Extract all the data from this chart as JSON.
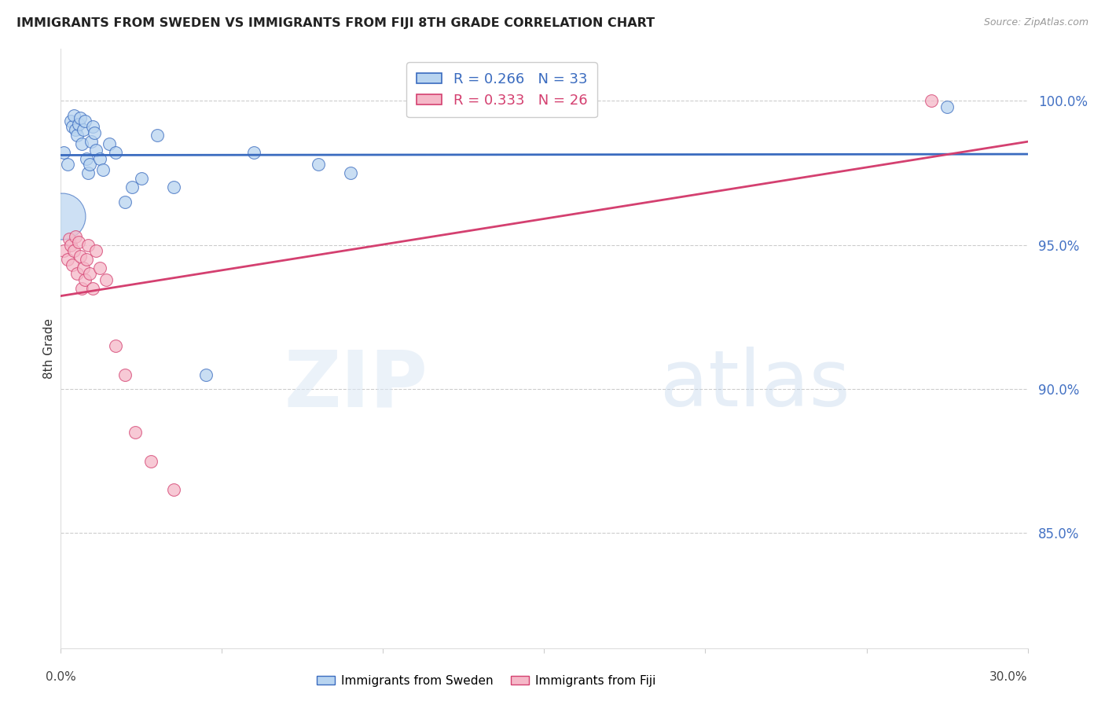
{
  "title": "IMMIGRANTS FROM SWEDEN VS IMMIGRANTS FROM FIJI 8TH GRADE CORRELATION CHART",
  "source": "Source: ZipAtlas.com",
  "ylabel": "8th Grade",
  "x_min": 0.0,
  "x_max": 30.0,
  "y_min": 81.0,
  "y_max": 101.8,
  "y_ticks": [
    85.0,
    90.0,
    95.0,
    100.0
  ],
  "sweden_R": 0.266,
  "sweden_N": 33,
  "fiji_R": 0.333,
  "fiji_N": 26,
  "sweden_color": "#b8d4f0",
  "fiji_color": "#f5b8c8",
  "sweden_line_color": "#3a6bbf",
  "fiji_line_color": "#d44070",
  "sweden_points_x": [
    0.1,
    0.2,
    0.3,
    0.35,
    0.4,
    0.45,
    0.5,
    0.55,
    0.6,
    0.65,
    0.7,
    0.75,
    0.8,
    0.85,
    0.9,
    0.95,
    1.0,
    1.05,
    1.1,
    1.2,
    1.3,
    1.5,
    1.7,
    2.0,
    2.2,
    2.5,
    3.0,
    3.5,
    4.5,
    6.0,
    8.0,
    9.0,
    27.5
  ],
  "sweden_points_y": [
    98.2,
    97.8,
    99.3,
    99.1,
    99.5,
    99.0,
    98.8,
    99.2,
    99.4,
    98.5,
    99.0,
    99.3,
    98.0,
    97.5,
    97.8,
    98.6,
    99.1,
    98.9,
    98.3,
    98.0,
    97.6,
    98.5,
    98.2,
    96.5,
    97.0,
    97.3,
    98.8,
    97.0,
    90.5,
    98.2,
    97.8,
    97.5,
    99.8
  ],
  "sweden_sizes": [
    120,
    120,
    120,
    120,
    120,
    120,
    120,
    120,
    120,
    120,
    120,
    120,
    120,
    120,
    120,
    120,
    120,
    120,
    120,
    120,
    120,
    120,
    120,
    120,
    120,
    120,
    120,
    120,
    120,
    120,
    120,
    120,
    120
  ],
  "sweden_large_idx": 0,
  "sweden_large_size": 1800,
  "fiji_points_x": [
    0.1,
    0.2,
    0.25,
    0.3,
    0.35,
    0.4,
    0.45,
    0.5,
    0.55,
    0.6,
    0.65,
    0.7,
    0.75,
    0.8,
    0.85,
    0.9,
    1.0,
    1.1,
    1.2,
    1.4,
    1.7,
    2.0,
    2.3,
    2.8,
    3.5,
    27.0
  ],
  "fiji_points_y": [
    94.8,
    94.5,
    95.2,
    95.0,
    94.3,
    94.8,
    95.3,
    94.0,
    95.1,
    94.6,
    93.5,
    94.2,
    93.8,
    94.5,
    95.0,
    94.0,
    93.5,
    94.8,
    94.2,
    93.8,
    91.5,
    90.5,
    88.5,
    87.5,
    86.5,
    100.0
  ],
  "fiji_sizes": [
    120,
    120,
    120,
    120,
    120,
    120,
    120,
    120,
    120,
    120,
    120,
    120,
    120,
    120,
    120,
    120,
    120,
    120,
    120,
    120,
    120,
    120,
    120,
    120,
    120,
    120
  ],
  "watermark_zip": "ZIP",
  "watermark_atlas": "atlas"
}
